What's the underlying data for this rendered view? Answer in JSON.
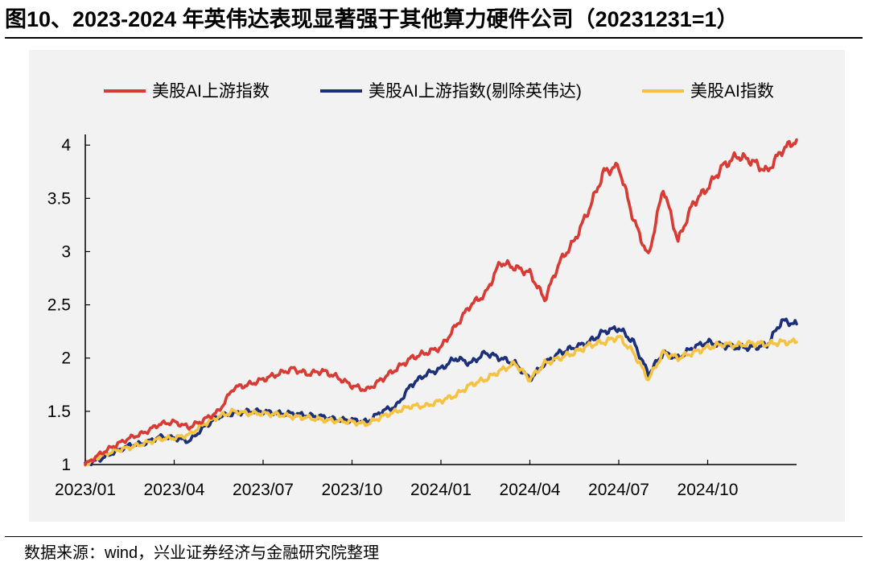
{
  "figure": {
    "title": "图10、2023-2024 年英伟达表现显著强于其他算力硬件公司（20231231=1）",
    "source": "数据来源：wind，兴业证券经济与金融研究院整理"
  },
  "chart_data": {
    "type": "line",
    "title": "",
    "xlabel": "",
    "ylabel": "",
    "ylim": [
      1,
      4.1
    ],
    "yticks": [
      1,
      1.5,
      2,
      2.5,
      3,
      3.5,
      4
    ],
    "ytick_labels": [
      "1",
      "1.5",
      "2",
      "2.5",
      "3",
      "3.5",
      "4"
    ],
    "xlim": [
      0,
      24
    ],
    "xticks": [
      0,
      3,
      6,
      9,
      12,
      15,
      18,
      21
    ],
    "xtick_labels": [
      "2023/01",
      "2023/04",
      "2023/07",
      "2023/10",
      "2024/01",
      "2024/04",
      "2024/07",
      "2024/10"
    ],
    "legend_position": "top",
    "x": [
      0,
      0.5,
      1,
      1.5,
      2,
      2.5,
      3,
      3.5,
      4,
      4.5,
      5,
      5.5,
      6,
      6.5,
      7,
      7.5,
      8,
      8.5,
      9,
      9.5,
      10,
      10.5,
      11,
      11.5,
      12,
      12.5,
      13,
      13.5,
      14,
      14.5,
      15,
      15.5,
      16,
      16.5,
      17,
      17.5,
      18,
      18.5,
      19,
      19.5,
      20,
      20.5,
      21,
      21.5,
      22,
      22.5,
      23,
      23.5,
      24
    ],
    "series": [
      {
        "name": "美股AI上游指数",
        "color": "#d93a33",
        "values": [
          1.0,
          1.1,
          1.18,
          1.25,
          1.3,
          1.38,
          1.4,
          1.35,
          1.42,
          1.5,
          1.72,
          1.75,
          1.8,
          1.85,
          1.9,
          1.85,
          1.88,
          1.82,
          1.74,
          1.7,
          1.8,
          1.9,
          2.0,
          2.05,
          2.1,
          2.3,
          2.5,
          2.6,
          2.9,
          2.85,
          2.8,
          2.55,
          2.9,
          3.1,
          3.4,
          3.75,
          3.8,
          3.3,
          2.95,
          3.6,
          3.1,
          3.45,
          3.6,
          3.8,
          3.9,
          3.85,
          3.75,
          3.95,
          4.05
        ]
      },
      {
        "name": "美股AI上游指数(剔除英伟达)",
        "color": "#1b2f7a",
        "values": [
          1.0,
          1.05,
          1.12,
          1.18,
          1.2,
          1.26,
          1.25,
          1.22,
          1.35,
          1.45,
          1.48,
          1.5,
          1.5,
          1.48,
          1.48,
          1.46,
          1.45,
          1.42,
          1.42,
          1.4,
          1.5,
          1.55,
          1.75,
          1.85,
          1.9,
          2.0,
          1.95,
          2.05,
          2.0,
          1.95,
          1.8,
          1.95,
          2.05,
          2.1,
          2.15,
          2.25,
          2.28,
          2.15,
          1.85,
          2.05,
          2.0,
          2.1,
          2.15,
          2.12,
          2.1,
          2.1,
          2.12,
          2.35,
          2.32
        ]
      },
      {
        "name": "美股AI指数",
        "color": "#f5c242",
        "values": [
          1.0,
          1.08,
          1.13,
          1.16,
          1.2,
          1.24,
          1.25,
          1.28,
          1.38,
          1.45,
          1.5,
          1.48,
          1.48,
          1.47,
          1.45,
          1.44,
          1.42,
          1.41,
          1.4,
          1.38,
          1.45,
          1.5,
          1.55,
          1.55,
          1.6,
          1.65,
          1.75,
          1.8,
          1.88,
          1.95,
          1.8,
          1.95,
          2.0,
          2.05,
          2.12,
          2.15,
          2.2,
          2.05,
          1.8,
          2.05,
          2.0,
          2.05,
          2.1,
          2.13,
          2.12,
          2.14,
          2.13,
          2.15,
          2.15
        ]
      }
    ]
  }
}
